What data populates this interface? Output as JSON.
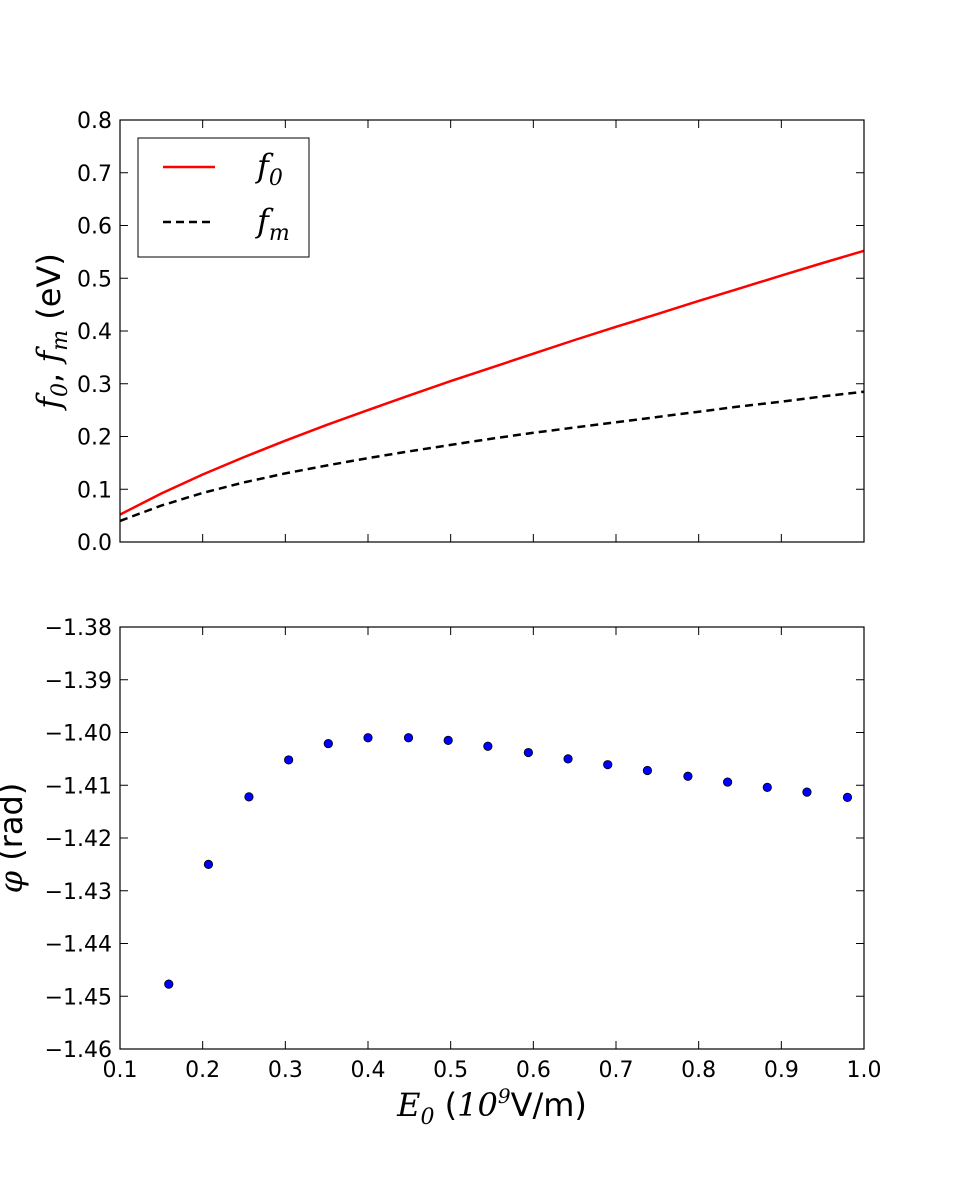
{
  "chart_data": [
    {
      "type": "line",
      "panel": "top",
      "ylabel": "f0, fm (eV)",
      "ylabel_parts": {
        "f": "f",
        "sub0": "0",
        "sep": ", ",
        "sub_m": "m",
        "unit": " (eV)"
      },
      "xlim": [
        0.1,
        1.0
      ],
      "ylim": [
        0.0,
        0.8
      ],
      "xticks": [
        0.1,
        0.2,
        0.3,
        0.4,
        0.5,
        0.6,
        0.7,
        0.8,
        0.9,
        1.0
      ],
      "xtick_labels_visible": false,
      "yticks": [
        "0.0",
        "0.1",
        "0.2",
        "0.3",
        "0.4",
        "0.5",
        "0.6",
        "0.7",
        "0.8"
      ],
      "legend_position": "top-left",
      "series": [
        {
          "name": "f0",
          "legend_base": "f",
          "legend_sub": "0",
          "color": "#ff0000",
          "style": "solid",
          "x": [
            0.1,
            0.15,
            0.2,
            0.25,
            0.3,
            0.35,
            0.4,
            0.45,
            0.5,
            0.55,
            0.6,
            0.65,
            0.7,
            0.75,
            0.8,
            0.85,
            0.9,
            0.95,
            1.0
          ],
          "y": [
            0.052,
            0.092,
            0.128,
            0.161,
            0.192,
            0.222,
            0.25,
            0.278,
            0.305,
            0.331,
            0.357,
            0.383,
            0.408,
            0.432,
            0.457,
            0.481,
            0.505,
            0.529,
            0.552
          ]
        },
        {
          "name": "fm",
          "legend_base": "f",
          "legend_sub": "m",
          "color": "#000000",
          "style": "dashed",
          "x": [
            0.1,
            0.15,
            0.2,
            0.25,
            0.3,
            0.35,
            0.4,
            0.45,
            0.5,
            0.55,
            0.6,
            0.65,
            0.7,
            0.75,
            0.8,
            0.85,
            0.9,
            0.95,
            1.0
          ],
          "y": [
            0.04,
            0.069,
            0.093,
            0.113,
            0.13,
            0.145,
            0.159,
            0.172,
            0.184,
            0.196,
            0.207,
            0.217,
            0.227,
            0.237,
            0.247,
            0.257,
            0.266,
            0.276,
            0.285
          ]
        }
      ]
    },
    {
      "type": "scatter",
      "panel": "bottom",
      "ylabel": "φ (rad)",
      "ylabel_parts": {
        "symbol": "φ",
        "unit": " (rad)"
      },
      "xlabel": "E0 (10^9V/m)",
      "xlabel_parts": {
        "E": "E",
        "sub0": "0",
        "open": " (",
        "base": "10",
        "exp": "9",
        "unit": "V/m)"
      },
      "xlim": [
        0.1,
        1.0
      ],
      "ylim": [
        -1.46,
        -1.38
      ],
      "xticks": [
        "0.1",
        "0.2",
        "0.3",
        "0.4",
        "0.5",
        "0.6",
        "0.7",
        "0.8",
        "0.9",
        "1.0"
      ],
      "yticks": [
        "−1.38",
        "−1.39",
        "−1.40",
        "−1.41",
        "−1.42",
        "−1.43",
        "−1.44",
        "−1.45",
        "−1.46"
      ],
      "marker_color": "#0000ff",
      "points": [
        {
          "x": 0.159,
          "y": -1.4477
        },
        {
          "x": 0.207,
          "y": -1.425
        },
        {
          "x": 0.256,
          "y": -1.4122
        },
        {
          "x": 0.304,
          "y": -1.4052
        },
        {
          "x": 0.352,
          "y": -1.4021
        },
        {
          "x": 0.4,
          "y": -1.401
        },
        {
          "x": 0.449,
          "y": -1.401
        },
        {
          "x": 0.497,
          "y": -1.4015
        },
        {
          "x": 0.545,
          "y": -1.4026
        },
        {
          "x": 0.594,
          "y": -1.4038
        },
        {
          "x": 0.642,
          "y": -1.405
        },
        {
          "x": 0.69,
          "y": -1.4061
        },
        {
          "x": 0.738,
          "y": -1.4072
        },
        {
          "x": 0.787,
          "y": -1.4083
        },
        {
          "x": 0.835,
          "y": -1.4094
        },
        {
          "x": 0.883,
          "y": -1.4104
        },
        {
          "x": 0.931,
          "y": -1.4113
        },
        {
          "x": 0.98,
          "y": -1.4123
        }
      ]
    }
  ]
}
